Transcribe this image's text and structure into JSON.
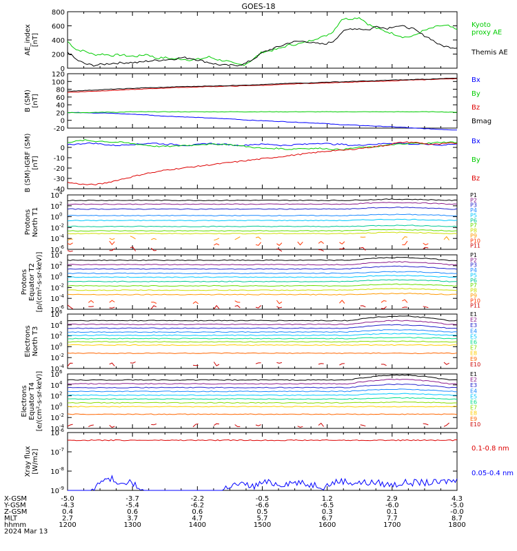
{
  "title": "GOES-18",
  "colors": {
    "black": "#000000",
    "blue": "#0000ff",
    "green": "#00cc00",
    "red": "#dd0000",
    "P1": "#000000",
    "P2": "#8a1a8a",
    "P3": "#2222cc",
    "P4": "#1a88ff",
    "P5": "#00c8ff",
    "P6": "#00c896",
    "P7": "#66dd00",
    "P8": "#ccdd00",
    "P9": "#ff9900",
    "P10": "#ff3300",
    "P11": "#cc0000",
    "E1": "#000000",
    "E2": "#8a1a8a",
    "E3": "#2222cc",
    "E4": "#1a88ff",
    "E5": "#00c8ff",
    "E6": "#00dd88",
    "E7": "#88dd00",
    "E8": "#ffcc00",
    "E9": "#ff6600",
    "E10": "#cc0000"
  },
  "chart_data": [
    {
      "type": "line",
      "ylabel": "AE_index\n[nT]",
      "ylim": [
        0,
        800
      ],
      "yticks": [
        "0",
        "200",
        "400",
        "600",
        "800"
      ],
      "series": [
        {
          "name": "Kyoto proxy AE",
          "color": "green",
          "values": [
            380,
            260,
            240,
            190,
            200,
            180,
            190,
            170,
            170,
            200,
            140,
            150,
            130,
            130,
            115,
            130,
            160,
            120,
            100,
            55,
            50,
            130,
            230,
            250,
            280,
            330,
            340,
            370,
            420,
            450,
            520,
            700,
            700,
            720,
            620,
            560,
            520,
            480,
            440,
            450,
            520,
            560,
            600,
            600,
            540
          ]
        },
        {
          "name": "Themis AE",
          "color": "black",
          "values": [
            230,
            120,
            60,
            40,
            55,
            70,
            75,
            80,
            80,
            100,
            110,
            120,
            130,
            150,
            140,
            110,
            80,
            50,
            40,
            40,
            60,
            130,
            220,
            270,
            310,
            360,
            380,
            380,
            350,
            340,
            380,
            510,
            560,
            560,
            540,
            600,
            560,
            600,
            590,
            560,
            480,
            420,
            330,
            300,
            290
          ]
        }
      ]
    },
    {
      "type": "line",
      "ylabel": "B (SM)\n[nT]",
      "ylim": [
        -20,
        120
      ],
      "yticks": [
        "-20",
        "0",
        "20",
        "40",
        "60",
        "80",
        "100",
        "120"
      ],
      "series": [
        {
          "name": "Bx",
          "color": "blue",
          "values": [
            20,
            20,
            20,
            19,
            19,
            18,
            17,
            16,
            15,
            14,
            12,
            11,
            10,
            9,
            8,
            7,
            6,
            5,
            4,
            3,
            1,
            0,
            -1,
            -2,
            -3,
            -4,
            -5,
            -6,
            -7,
            -8,
            -10,
            -11,
            -12,
            -13,
            -14,
            -15,
            -16,
            -17,
            -18,
            -20,
            -21,
            -22,
            -23,
            -24,
            -25
          ]
        },
        {
          "name": "By",
          "color": "green",
          "values": [
            20,
            20,
            20,
            20,
            21,
            21,
            21,
            22,
            22,
            22,
            22,
            22,
            22,
            22,
            22,
            22,
            22,
            22,
            22,
            22,
            22,
            22,
            22,
            22,
            22,
            22,
            22,
            22,
            22,
            22,
            22,
            22,
            22,
            22,
            22,
            22,
            22,
            22,
            22,
            22,
            22,
            22,
            22,
            21,
            21
          ]
        },
        {
          "name": "Bz",
          "color": "red",
          "values": [
            72,
            73,
            74,
            75,
            76,
            77,
            78,
            79,
            80,
            81,
            82,
            83,
            84,
            85,
            85,
            86,
            87,
            87,
            88,
            88,
            89,
            90,
            90,
            91,
            92,
            93,
            94,
            95,
            95,
            96,
            97,
            98,
            98,
            99,
            100,
            100,
            101,
            102,
            103,
            104,
            104,
            105,
            106,
            107,
            107
          ]
        },
        {
          "name": "Bmag",
          "color": "black",
          "values": [
            75,
            76,
            77,
            78,
            79,
            80,
            81,
            82,
            83,
            84,
            84,
            85,
            86,
            87,
            87,
            88,
            88,
            89,
            89,
            90,
            91,
            91,
            92,
            93,
            94,
            95,
            96,
            96,
            97,
            98,
            99,
            99,
            100,
            101,
            101,
            102,
            103,
            104,
            104,
            105,
            106,
            106,
            107,
            108,
            108
          ]
        }
      ]
    },
    {
      "type": "line",
      "ylabel": "B (SM)-IGRF (SM)\n[nT]",
      "ylim": [
        -40,
        10
      ],
      "yticks": [
        "-40",
        "-30",
        "-20",
        "-10",
        "0"
      ],
      "series": [
        {
          "name": "Bx",
          "color": "blue",
          "values": [
            3,
            3,
            4,
            4,
            3,
            2,
            2,
            3,
            3,
            4,
            4,
            3,
            3,
            2,
            2,
            3,
            4,
            3,
            3,
            2,
            2,
            3,
            3,
            3,
            2,
            2,
            3,
            3,
            4,
            4,
            3,
            3,
            2,
            2,
            3,
            3,
            4,
            4,
            4,
            3,
            3,
            3,
            2,
            3,
            3
          ]
        },
        {
          "name": "By",
          "color": "green",
          "values": [
            5,
            6,
            7,
            6,
            6,
            5,
            5,
            4,
            3,
            2,
            1,
            1,
            1,
            2,
            2,
            3,
            3,
            3,
            3,
            2,
            1,
            0,
            -1,
            -1,
            -1,
            -2,
            -1,
            -1,
            -1,
            -1,
            -2,
            -2,
            -1,
            0,
            0,
            1,
            2,
            3,
            3,
            4,
            4,
            4,
            5,
            5,
            5
          ]
        },
        {
          "name": "Bz",
          "color": "red",
          "values": [
            -34,
            -35,
            -36,
            -36,
            -35,
            -33,
            -31,
            -29,
            -27,
            -25,
            -24,
            -22,
            -21,
            -20,
            -19,
            -18,
            -17,
            -16,
            -15,
            -14,
            -13,
            -12,
            -11,
            -10,
            -9,
            -8,
            -7,
            -6,
            -5,
            -4,
            -3,
            -3,
            -2,
            -1,
            0,
            1,
            2,
            4,
            5,
            5,
            4,
            3,
            3,
            4,
            4
          ]
        }
      ]
    },
    {
      "type": "line",
      "ylabel": "Protons\nNorth T1",
      "yscale": "log",
      "ylim": [
        -6,
        4
      ],
      "ytick_exponents": [
        -6,
        -4,
        -2,
        0,
        2,
        4
      ],
      "series": [
        {
          "name": "P1",
          "exp": 3.0,
          "bump": 0.2
        },
        {
          "name": "P2",
          "exp": 2.3,
          "bump": 0.3
        },
        {
          "name": "P3",
          "exp": 1.4,
          "bump": 0.3
        },
        {
          "name": "P4",
          "exp": 0.2,
          "bump": 0.2
        },
        {
          "name": "P5",
          "exp": -0.7,
          "bump": 0.2
        },
        {
          "name": "P6",
          "exp": -1.8,
          "bump": 0.2
        },
        {
          "name": "P7",
          "exp": -2.6,
          "bump": 0.2
        },
        {
          "name": "P8",
          "exp": -3.1,
          "bump": 0.2
        },
        {
          "name": "P9",
          "exp": -4.0,
          "bump": 0.0
        },
        {
          "name": "P10",
          "exp": -4.9,
          "bump": 0.0
        },
        {
          "name": "P11",
          "exp": -6.0,
          "bump": 0.0
        }
      ]
    },
    {
      "type": "line",
      "ylabel": "Protons\nEquator T2\n[p/(cm²-s-sr-keV)]",
      "yscale": "log",
      "ylim": [
        -6,
        4
      ],
      "ytick_exponents": [
        -6,
        -4,
        -2,
        0,
        2,
        4
      ],
      "series": [
        {
          "name": "P1",
          "exp": 3.0,
          "bump": 0.5
        },
        {
          "name": "P2",
          "exp": 2.2,
          "bump": 0.5
        },
        {
          "name": "P3",
          "exp": 1.4,
          "bump": 0.5
        },
        {
          "name": "P4",
          "exp": 0.6,
          "bump": 0.3
        },
        {
          "name": "P5",
          "exp": -0.1,
          "bump": 0.3
        },
        {
          "name": "P6",
          "exp": -0.9,
          "bump": 0.3
        },
        {
          "name": "P7",
          "exp": -1.7,
          "bump": 0.3
        },
        {
          "name": "P8",
          "exp": -2.5,
          "bump": 0.3
        },
        {
          "name": "P9",
          "exp": -3.3,
          "bump": 0.2
        },
        {
          "name": "P10",
          "exp": -4.6,
          "bump": 0.0
        },
        {
          "name": "P11",
          "exp": -5.6,
          "bump": 0.0
        }
      ]
    },
    {
      "type": "line",
      "ylabel": "Electrons\nNorth T3",
      "yscale": "log",
      "ylim": [
        -4,
        6
      ],
      "ytick_exponents": [
        -4,
        -2,
        0,
        2,
        4,
        6
      ],
      "series": [
        {
          "name": "E1",
          "exp": 4.8,
          "bump": 0.8
        },
        {
          "name": "E2",
          "exp": 4.1,
          "bump": 0.7
        },
        {
          "name": "E3",
          "exp": 3.4,
          "bump": 0.6
        },
        {
          "name": "E4",
          "exp": 2.7,
          "bump": 0.4
        },
        {
          "name": "E5",
          "exp": 2.1,
          "bump": 0.3
        },
        {
          "name": "E6",
          "exp": 1.5,
          "bump": 0.2
        },
        {
          "name": "E7",
          "exp": 0.9,
          "bump": 0.1
        },
        {
          "name": "E8",
          "exp": 0.3,
          "bump": 0.0
        },
        {
          "name": "E9",
          "exp": -1.2,
          "bump": 0.0
        },
        {
          "name": "E10",
          "exp": -3.2,
          "bump": 0.0
        }
      ]
    },
    {
      "type": "line",
      "ylabel": "Electrons\nEquator T4\n[e/(cm²-s-sr-keV)]",
      "yscale": "log",
      "ylim": [
        -4,
        6
      ],
      "ytick_exponents": [
        -4,
        -2,
        0,
        2,
        4,
        6
      ],
      "series": [
        {
          "name": "E1",
          "exp": 4.9,
          "bump": 0.9
        },
        {
          "name": "E2",
          "exp": 4.2,
          "bump": 0.8
        },
        {
          "name": "E3",
          "exp": 3.5,
          "bump": 0.6
        },
        {
          "name": "E4",
          "exp": 2.8,
          "bump": 0.4
        },
        {
          "name": "E5",
          "exp": 2.1,
          "bump": 0.3
        },
        {
          "name": "E6",
          "exp": 1.4,
          "bump": 0.2
        },
        {
          "name": "E7",
          "exp": 0.7,
          "bump": 0.1
        },
        {
          "name": "E8",
          "exp": 0.0,
          "bump": 0.0
        },
        {
          "name": "E9",
          "exp": -1.4,
          "bump": 0.0
        },
        {
          "name": "E10",
          "exp": -3.4,
          "bump": 0.0
        }
      ]
    },
    {
      "type": "line",
      "ylabel": "Xray flux\n[W/m2]",
      "yscale": "log",
      "ylim": [
        -9,
        -6
      ],
      "ytick_exponents": [
        -9,
        -8,
        -7,
        -6
      ],
      "series": [
        {
          "name": "0.1-0.8 nm",
          "color": "red",
          "exp": -6.4
        },
        {
          "name": "0.05-0.4 nm",
          "color": "blue",
          "values_exp": [
            -9.3,
            -9.3,
            -9.3,
            -8.9,
            -8.5,
            -8.4,
            -8.6,
            -8.5,
            -8.9,
            -9.3,
            -9.3,
            -9.3,
            -9.3,
            -9.3,
            -9.3,
            -9.3,
            -9.3,
            -9.3,
            -8.8,
            -8.7,
            -8.7,
            -8.8,
            -8.6,
            -8.6,
            -8.7,
            -8.6,
            -8.6,
            -8.7,
            -8.7,
            -8.8,
            -8.6,
            -8.5,
            -8.6,
            -8.6,
            -8.6,
            -8.6,
            -8.7,
            -8.7,
            -8.6,
            -8.6,
            -8.6,
            -8.6,
            -8.6,
            -8.5,
            -8.5
          ]
        }
      ]
    }
  ],
  "orbit": {
    "rows": [
      {
        "label": "X-GSM",
        "values": [
          "-5.0",
          "-3.7",
          "-2.2",
          "-0.5",
          "1.2",
          "2.9",
          "4.3"
        ]
      },
      {
        "label": "Y-GSM",
        "values": [
          "-4.3",
          "-5.4",
          "-6.2",
          "-6.6",
          "-6.5",
          "-6.0",
          "-5.0"
        ]
      },
      {
        "label": "Z-GSM",
        "values": [
          "0.4",
          "0.6",
          "0.6",
          "0.5",
          "0.3",
          "0.1",
          "-0.0"
        ]
      },
      {
        "label": "MLT",
        "values": [
          "2.7",
          "3.7",
          "4.7",
          "5.7",
          "6.7",
          "7.7",
          "8.7"
        ]
      },
      {
        "label": "hhmm",
        "values": [
          "1200",
          "1300",
          "1400",
          "1500",
          "1600",
          "1700",
          "1800"
        ]
      }
    ],
    "date": "2024 Mar 13"
  }
}
